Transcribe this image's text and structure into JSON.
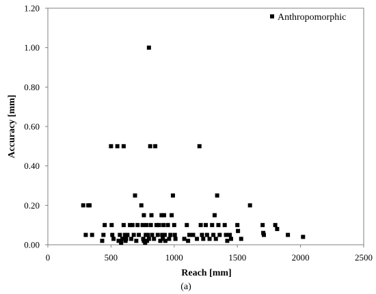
{
  "chart_data": {
    "type": "scatter",
    "title": "",
    "xlabel": "Reach [mm]",
    "ylabel": "Accuracy [mm]",
    "caption": "(a)",
    "xlim": [
      0,
      2500
    ],
    "ylim": [
      0,
      1.2
    ],
    "x_ticks": [
      0,
      500,
      1000,
      1500,
      2000,
      2500
    ],
    "y_ticks": [
      0.0,
      0.2,
      0.4,
      0.6,
      0.8,
      1.0,
      1.2
    ],
    "x_tick_labels": [
      "0",
      "500",
      "1000",
      "1500",
      "2000",
      "2500"
    ],
    "y_tick_labels": [
      "0.00",
      "0.20",
      "0.40",
      "0.60",
      "0.80",
      "1.00",
      "1.20"
    ],
    "grid": false,
    "legend": {
      "position": "top-right",
      "entries": [
        "Anthropomorphic"
      ]
    },
    "marker": "square",
    "color": "#000000",
    "series": [
      {
        "name": "Anthropomorphic",
        "points": [
          [
            280,
            0.2
          ],
          [
            300,
            0.05
          ],
          [
            320,
            0.2
          ],
          [
            330,
            0.2
          ],
          [
            350,
            0.05
          ],
          [
            430,
            0.02
          ],
          [
            440,
            0.05
          ],
          [
            450,
            0.1
          ],
          [
            500,
            0.5
          ],
          [
            505,
            0.1
          ],
          [
            510,
            0.05
          ],
          [
            520,
            0.03
          ],
          [
            550,
            0.5
          ],
          [
            560,
            0.02
          ],
          [
            570,
            0.05
          ],
          [
            580,
            0.01
          ],
          [
            590,
            0.03
          ],
          [
            600,
            0.1
          ],
          [
            600,
            0.5
          ],
          [
            610,
            0.05
          ],
          [
            615,
            0.02
          ],
          [
            620,
            0.03
          ],
          [
            630,
            0.05
          ],
          [
            650,
            0.1
          ],
          [
            660,
            0.03
          ],
          [
            670,
            0.1
          ],
          [
            680,
            0.05
          ],
          [
            690,
            0.25
          ],
          [
            700,
            0.02
          ],
          [
            710,
            0.1
          ],
          [
            720,
            0.05
          ],
          [
            740,
            0.2
          ],
          [
            750,
            0.1
          ],
          [
            755,
            0.03
          ],
          [
            760,
            0.02
          ],
          [
            760,
            0.15
          ],
          [
            770,
            0.01
          ],
          [
            775,
            0.05
          ],
          [
            780,
            0.1
          ],
          [
            785,
            0.02
          ],
          [
            790,
            0.05
          ],
          [
            800,
            1.0
          ],
          [
            800,
            0.03
          ],
          [
            810,
            0.5
          ],
          [
            815,
            0.1
          ],
          [
            820,
            0.15
          ],
          [
            825,
            0.05
          ],
          [
            840,
            0.03
          ],
          [
            850,
            0.5
          ],
          [
            860,
            0.1
          ],
          [
            870,
            0.05
          ],
          [
            880,
            0.1
          ],
          [
            890,
            0.02
          ],
          [
            900,
            0.15
          ],
          [
            905,
            0.05
          ],
          [
            910,
            0.03
          ],
          [
            915,
            0.1
          ],
          [
            920,
            0.15
          ],
          [
            925,
            0.05
          ],
          [
            930,
            0.02
          ],
          [
            950,
            0.1
          ],
          [
            960,
            0.03
          ],
          [
            970,
            0.05
          ],
          [
            980,
            0.15
          ],
          [
            990,
            0.25
          ],
          [
            1000,
            0.1
          ],
          [
            1005,
            0.05
          ],
          [
            1010,
            0.03
          ],
          [
            1080,
            0.03
          ],
          [
            1100,
            0.1
          ],
          [
            1110,
            0.02
          ],
          [
            1120,
            0.05
          ],
          [
            1150,
            0.05
          ],
          [
            1180,
            0.03
          ],
          [
            1200,
            0.5
          ],
          [
            1210,
            0.1
          ],
          [
            1220,
            0.05
          ],
          [
            1230,
            0.03
          ],
          [
            1250,
            0.1
          ],
          [
            1260,
            0.05
          ],
          [
            1280,
            0.03
          ],
          [
            1300,
            0.1
          ],
          [
            1310,
            0.05
          ],
          [
            1320,
            0.15
          ],
          [
            1330,
            0.03
          ],
          [
            1340,
            0.25
          ],
          [
            1350,
            0.1
          ],
          [
            1360,
            0.05
          ],
          [
            1400,
            0.1
          ],
          [
            1410,
            0.05
          ],
          [
            1420,
            0.02
          ],
          [
            1440,
            0.05
          ],
          [
            1450,
            0.03
          ],
          [
            1500,
            0.1
          ],
          [
            1505,
            0.07
          ],
          [
            1530,
            0.03
          ],
          [
            1600,
            0.2
          ],
          [
            1700,
            0.1
          ],
          [
            1705,
            0.06
          ],
          [
            1710,
            0.05
          ],
          [
            1800,
            0.1
          ],
          [
            1815,
            0.08
          ],
          [
            1900,
            0.05
          ],
          [
            2020,
            0.04
          ]
        ]
      }
    ]
  }
}
